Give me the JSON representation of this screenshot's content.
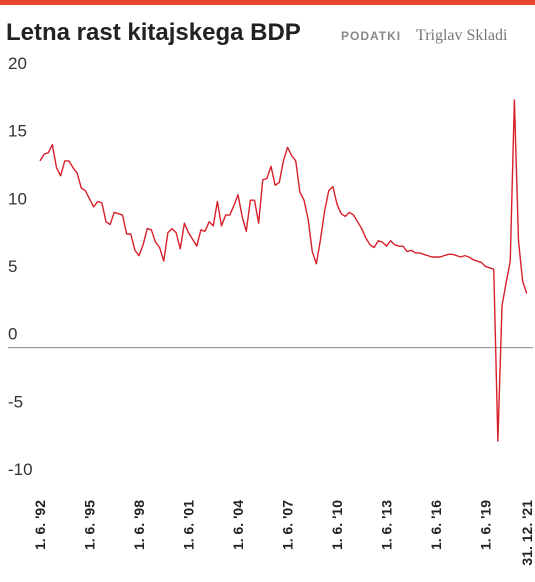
{
  "chart_data": {
    "type": "line",
    "title": "Letna rast kitajskega BDP",
    "source_label": "PODATKI",
    "source": "Triglav Skladi",
    "categories": [
      "1. 6. '92",
      null,
      null,
      null,
      null,
      null,
      null,
      null,
      null,
      null,
      null,
      null,
      "1. 6. '95",
      null,
      null,
      null,
      null,
      null,
      null,
      null,
      null,
      null,
      null,
      null,
      "1. 6. '98",
      null,
      null,
      null,
      null,
      null,
      null,
      null,
      null,
      null,
      null,
      null,
      "1. 6. '01",
      null,
      null,
      null,
      null,
      null,
      null,
      null,
      null,
      null,
      null,
      null,
      "1. 6. '04",
      null,
      null,
      null,
      null,
      null,
      null,
      null,
      null,
      null,
      null,
      null,
      "1. 6. '07",
      null,
      null,
      null,
      null,
      null,
      null,
      null,
      null,
      null,
      null,
      null,
      "1. 6. '10",
      null,
      null,
      null,
      null,
      null,
      null,
      null,
      null,
      null,
      null,
      null,
      "1. 6. '13",
      null,
      null,
      null,
      null,
      null,
      null,
      null,
      null,
      null,
      null,
      null,
      "1. 6. '16",
      null,
      null,
      null,
      null,
      null,
      null,
      null,
      null,
      null,
      null,
      null,
      "1. 6. '19",
      null,
      null,
      null,
      null,
      null,
      null,
      null,
      null,
      null,
      "31. 12. '21"
    ],
    "values": [
      13.8,
      14.3,
      14.4,
      15.0,
      13.3,
      12.7,
      13.8,
      13.8,
      13.3,
      12.9,
      11.8,
      11.6,
      11.0,
      10.4,
      10.8,
      10.7,
      9.3,
      9.1,
      10.0,
      9.9,
      9.8,
      8.4,
      8.4,
      7.2,
      6.8,
      7.6,
      8.8,
      8.7,
      7.8,
      7.4,
      6.4,
      8.5,
      8.8,
      8.5,
      7.3,
      9.2,
      8.5,
      8.0,
      7.5,
      8.7,
      8.6,
      9.3,
      9.0,
      10.8,
      9.0,
      9.8,
      9.8,
      10.5,
      11.3,
      9.7,
      8.6,
      10.9,
      10.9,
      9.2,
      12.4,
      12.5,
      13.4,
      12.0,
      12.2,
      13.8,
      14.8,
      14.2,
      13.8,
      11.5,
      10.9,
      9.5,
      7.1,
      6.2,
      8.0,
      10.1,
      11.6,
      11.9,
      10.6,
      9.9,
      9.7,
      10.0,
      9.8,
      9.3,
      8.8,
      8.1,
      7.6,
      7.4,
      7.9,
      7.8,
      7.5,
      7.9,
      7.6,
      7.5,
      7.5,
      7.1,
      7.2,
      7.0,
      7.0,
      6.9,
      6.8,
      6.7,
      6.7,
      6.7,
      6.8,
      6.9,
      6.9,
      6.8,
      6.7,
      6.8,
      6.7,
      6.5,
      6.4,
      6.3,
      6.0,
      5.9,
      5.8,
      -6.9,
      3.1,
      4.8,
      6.4,
      18.3,
      7.9,
      4.9,
      4.0
    ],
    "color": "#d8202a",
    "ylim": [
      -10,
      20
    ],
    "yticks": [
      -10,
      -5,
      0,
      5,
      10,
      15,
      20
    ],
    "grid": false
  }
}
